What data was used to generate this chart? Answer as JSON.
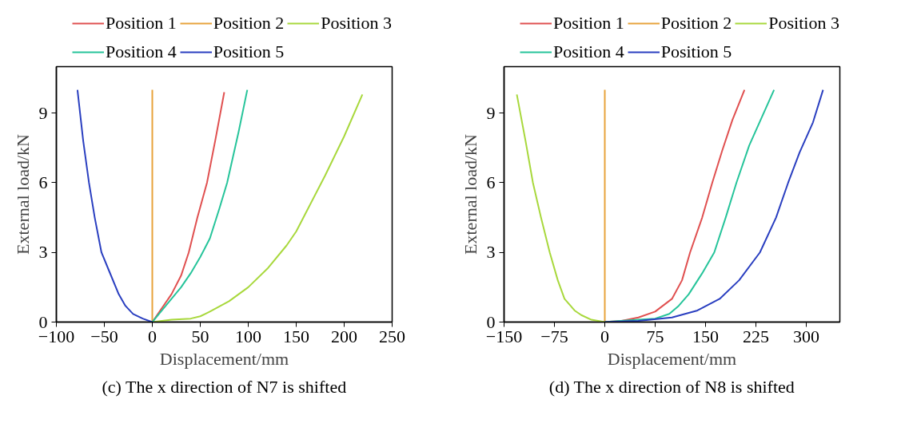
{
  "chart_data": [
    {
      "type": "line",
      "title": "(c) The x direction of N7 is shifted",
      "xlabel": "Displacement/mm",
      "ylabel": "External load/kN",
      "xlim": [
        -100,
        250
      ],
      "ylim": [
        0,
        11
      ],
      "xticks": [
        -100,
        -50,
        0,
        50,
        100,
        150,
        200,
        250
      ],
      "yticks": [
        0,
        3,
        6,
        9
      ],
      "grid": false,
      "legend": "top",
      "marker": "none",
      "line_style": "solid",
      "series": [
        {
          "name": "Position 1",
          "color": "#e05050",
          "x": [
            0,
            10,
            20,
            30,
            38,
            47,
            57,
            66,
            75
          ],
          "values": [
            0,
            0.6,
            1.2,
            2.0,
            3.0,
            4.5,
            6.0,
            7.9,
            9.9
          ]
        },
        {
          "name": "Position 2",
          "color": "#e8a33c",
          "x": [
            0,
            0
          ],
          "values": [
            0,
            10
          ]
        },
        {
          "name": "Position 3",
          "color": "#a8d83c",
          "x": [
            0,
            20,
            40,
            50,
            60,
            80,
            100,
            120,
            140,
            150,
            160,
            180,
            200,
            219
          ],
          "values": [
            0,
            0.1,
            0.15,
            0.25,
            0.45,
            0.9,
            1.5,
            2.3,
            3.3,
            3.9,
            4.7,
            6.3,
            8.0,
            9.8
          ]
        },
        {
          "name": "Position 4",
          "color": "#26c49a",
          "x": [
            0,
            10,
            20,
            30,
            40,
            50,
            60,
            70,
            78,
            90,
            99
          ],
          "values": [
            0,
            0.5,
            1.0,
            1.5,
            2.1,
            2.8,
            3.6,
            4.9,
            6.0,
            8.2,
            10.0
          ]
        },
        {
          "name": "Position 5",
          "color": "#2a3fc0",
          "x": [
            0,
            -10,
            -20,
            -28,
            -35,
            -45,
            -53,
            -60,
            -66,
            -72,
            -78
          ],
          "values": [
            0,
            0.15,
            0.35,
            0.7,
            1.2,
            2.2,
            3.0,
            4.5,
            6.0,
            7.8,
            10.0
          ]
        }
      ]
    },
    {
      "type": "line",
      "title": "(d) The x direction of N8 is shifted",
      "xlabel": "Displacement/mm",
      "ylabel": "External load/kN",
      "xlim": [
        -150,
        350
      ],
      "ylim": [
        0,
        11
      ],
      "xticks": [
        -150,
        -75,
        0,
        75,
        150,
        225,
        300
      ],
      "yticks": [
        0,
        3,
        6,
        9
      ],
      "grid": false,
      "legend": "top",
      "marker": "none",
      "line_style": "solid",
      "series": [
        {
          "name": "Position 1",
          "color": "#e05050",
          "x": [
            0,
            25,
            50,
            75,
            100,
            115,
            127,
            145,
            160,
            175,
            190,
            208
          ],
          "values": [
            0,
            0.05,
            0.2,
            0.45,
            1.0,
            1.8,
            3.0,
            4.5,
            6.0,
            7.4,
            8.7,
            10.0
          ]
        },
        {
          "name": "Position 2",
          "color": "#e8a33c",
          "x": [
            0,
            0
          ],
          "values": [
            0,
            10
          ]
        },
        {
          "name": "Position 3",
          "color": "#a8d83c",
          "x": [
            0,
            -20,
            -35,
            -45,
            -60,
            -70,
            -82,
            -95,
            -107,
            -118,
            -131
          ],
          "values": [
            0,
            0.1,
            0.3,
            0.5,
            1.0,
            1.8,
            3.0,
            4.5,
            6.0,
            7.8,
            9.8
          ]
        },
        {
          "name": "Position 4",
          "color": "#26c49a",
          "x": [
            0,
            50,
            75,
            96,
            110,
            125,
            145,
            163,
            180,
            196,
            215,
            235,
            252
          ],
          "values": [
            0,
            0.1,
            0.15,
            0.35,
            0.7,
            1.2,
            2.1,
            3.0,
            4.5,
            6.0,
            7.6,
            8.9,
            10.0
          ]
        },
        {
          "name": "Position 5",
          "color": "#2a3fc0",
          "x": [
            0,
            50,
            100,
            138,
            171,
            200,
            231,
            255,
            273,
            290,
            310,
            325
          ],
          "values": [
            0,
            0.05,
            0.2,
            0.5,
            1.0,
            1.8,
            3.0,
            4.5,
            6.0,
            7.3,
            8.6,
            10.0
          ]
        }
      ]
    }
  ]
}
